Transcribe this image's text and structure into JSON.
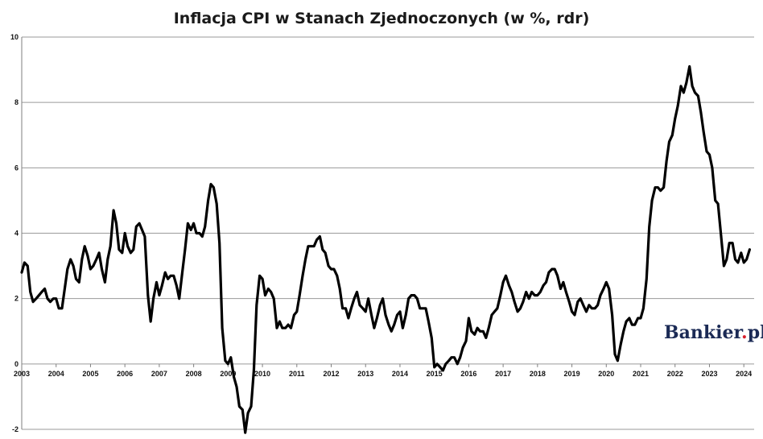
{
  "chart_data": {
    "type": "line",
    "title": "Inflacja CPI w Stanach Zjednoczonych (w %, rdr)",
    "xlabel": "",
    "ylabel": "",
    "xlim": [
      2003,
      2024.3
    ],
    "ylim": [
      -2,
      10
    ],
    "y_ticks": [
      "-2",
      "0",
      "2",
      "4",
      "6",
      "8",
      "10"
    ],
    "x_ticks": [
      "2003",
      "2004",
      "2005",
      "2006",
      "2007",
      "2008",
      "2009",
      "2010",
      "2011",
      "2012",
      "2013",
      "2014",
      "2015",
      "2016",
      "2017",
      "2018",
      "2019",
      "2020",
      "2021",
      "2022",
      "2023",
      "2024"
    ],
    "grid": true,
    "legend": "none",
    "series": [
      {
        "color": "#000000",
        "points": [
          [
            2003.0,
            2.8
          ],
          [
            2003.08,
            3.1
          ],
          [
            2003.17,
            3.0
          ],
          [
            2003.25,
            2.2
          ],
          [
            2003.33,
            1.9
          ],
          [
            2003.42,
            2.0
          ],
          [
            2003.5,
            2.1
          ],
          [
            2003.58,
            2.2
          ],
          [
            2003.67,
            2.3
          ],
          [
            2003.75,
            2.0
          ],
          [
            2003.83,
            1.9
          ],
          [
            2003.92,
            2.0
          ],
          [
            2004.0,
            2.0
          ],
          [
            2004.08,
            1.7
          ],
          [
            2004.17,
            1.7
          ],
          [
            2004.25,
            2.3
          ],
          [
            2004.33,
            2.9
          ],
          [
            2004.42,
            3.2
          ],
          [
            2004.5,
            3.0
          ],
          [
            2004.58,
            2.6
          ],
          [
            2004.67,
            2.5
          ],
          [
            2004.75,
            3.2
          ],
          [
            2004.83,
            3.6
          ],
          [
            2004.92,
            3.3
          ],
          [
            2005.0,
            2.9
          ],
          [
            2005.08,
            3.0
          ],
          [
            2005.17,
            3.2
          ],
          [
            2005.25,
            3.4
          ],
          [
            2005.33,
            2.9
          ],
          [
            2005.42,
            2.5
          ],
          [
            2005.5,
            3.2
          ],
          [
            2005.58,
            3.6
          ],
          [
            2005.67,
            4.7
          ],
          [
            2005.75,
            4.3
          ],
          [
            2005.83,
            3.5
          ],
          [
            2005.92,
            3.4
          ],
          [
            2006.0,
            4.0
          ],
          [
            2006.08,
            3.6
          ],
          [
            2006.17,
            3.4
          ],
          [
            2006.25,
            3.5
          ],
          [
            2006.33,
            4.2
          ],
          [
            2006.42,
            4.3
          ],
          [
            2006.5,
            4.1
          ],
          [
            2006.58,
            3.9
          ],
          [
            2006.67,
            2.1
          ],
          [
            2006.75,
            1.3
          ],
          [
            2006.83,
            2.0
          ],
          [
            2006.92,
            2.5
          ],
          [
            2007.0,
            2.1
          ],
          [
            2007.08,
            2.4
          ],
          [
            2007.17,
            2.8
          ],
          [
            2007.25,
            2.6
          ],
          [
            2007.33,
            2.7
          ],
          [
            2007.42,
            2.7
          ],
          [
            2007.5,
            2.4
          ],
          [
            2007.58,
            2.0
          ],
          [
            2007.67,
            2.8
          ],
          [
            2007.75,
            3.5
          ],
          [
            2007.83,
            4.3
          ],
          [
            2007.92,
            4.1
          ],
          [
            2008.0,
            4.3
          ],
          [
            2008.08,
            4.0
          ],
          [
            2008.17,
            4.0
          ],
          [
            2008.25,
            3.9
          ],
          [
            2008.33,
            4.2
          ],
          [
            2008.42,
            5.0
          ],
          [
            2008.5,
            5.5
          ],
          [
            2008.58,
            5.4
          ],
          [
            2008.67,
            4.9
          ],
          [
            2008.75,
            3.7
          ],
          [
            2008.83,
            1.1
          ],
          [
            2008.92,
            0.1
          ],
          [
            2009.0,
            0.0
          ],
          [
            2009.08,
            0.2
          ],
          [
            2009.17,
            -0.4
          ],
          [
            2009.25,
            -0.7
          ],
          [
            2009.33,
            -1.3
          ],
          [
            2009.42,
            -1.4
          ],
          [
            2009.5,
            -2.1
          ],
          [
            2009.58,
            -1.5
          ],
          [
            2009.67,
            -1.3
          ],
          [
            2009.75,
            -0.2
          ],
          [
            2009.83,
            1.8
          ],
          [
            2009.92,
            2.7
          ],
          [
            2010.0,
            2.6
          ],
          [
            2010.08,
            2.1
          ],
          [
            2010.17,
            2.3
          ],
          [
            2010.25,
            2.2
          ],
          [
            2010.33,
            2.0
          ],
          [
            2010.42,
            1.1
          ],
          [
            2010.5,
            1.3
          ],
          [
            2010.58,
            1.1
          ],
          [
            2010.67,
            1.1
          ],
          [
            2010.75,
            1.2
          ],
          [
            2010.83,
            1.1
          ],
          [
            2010.92,
            1.5
          ],
          [
            2011.0,
            1.6
          ],
          [
            2011.08,
            2.1
          ],
          [
            2011.17,
            2.7
          ],
          [
            2011.25,
            3.2
          ],
          [
            2011.33,
            3.6
          ],
          [
            2011.42,
            3.6
          ],
          [
            2011.5,
            3.6
          ],
          [
            2011.58,
            3.8
          ],
          [
            2011.67,
            3.9
          ],
          [
            2011.75,
            3.5
          ],
          [
            2011.83,
            3.4
          ],
          [
            2011.92,
            3.0
          ],
          [
            2012.0,
            2.9
          ],
          [
            2012.08,
            2.9
          ],
          [
            2012.17,
            2.7
          ],
          [
            2012.25,
            2.3
          ],
          [
            2012.33,
            1.7
          ],
          [
            2012.42,
            1.7
          ],
          [
            2012.5,
            1.4
          ],
          [
            2012.58,
            1.7
          ],
          [
            2012.67,
            2.0
          ],
          [
            2012.75,
            2.2
          ],
          [
            2012.83,
            1.8
          ],
          [
            2012.92,
            1.7
          ],
          [
            2013.0,
            1.6
          ],
          [
            2013.08,
            2.0
          ],
          [
            2013.17,
            1.5
          ],
          [
            2013.25,
            1.1
          ],
          [
            2013.33,
            1.4
          ],
          [
            2013.42,
            1.8
          ],
          [
            2013.5,
            2.0
          ],
          [
            2013.58,
            1.5
          ],
          [
            2013.67,
            1.2
          ],
          [
            2013.75,
            1.0
          ],
          [
            2013.83,
            1.2
          ],
          [
            2013.92,
            1.5
          ],
          [
            2014.0,
            1.6
          ],
          [
            2014.08,
            1.1
          ],
          [
            2014.17,
            1.5
          ],
          [
            2014.25,
            2.0
          ],
          [
            2014.33,
            2.1
          ],
          [
            2014.42,
            2.1
          ],
          [
            2014.5,
            2.0
          ],
          [
            2014.58,
            1.7
          ],
          [
            2014.67,
            1.7
          ],
          [
            2014.75,
            1.7
          ],
          [
            2014.83,
            1.3
          ],
          [
            2014.92,
            0.8
          ],
          [
            2015.0,
            -0.1
          ],
          [
            2015.08,
            0.0
          ],
          [
            2015.17,
            -0.1
          ],
          [
            2015.25,
            -0.2
          ],
          [
            2015.33,
            0.0
          ],
          [
            2015.42,
            0.1
          ],
          [
            2015.5,
            0.2
          ],
          [
            2015.58,
            0.2
          ],
          [
            2015.67,
            0.0
          ],
          [
            2015.75,
            0.2
          ],
          [
            2015.83,
            0.5
          ],
          [
            2015.92,
            0.7
          ],
          [
            2016.0,
            1.4
          ],
          [
            2016.08,
            1.0
          ],
          [
            2016.17,
            0.9
          ],
          [
            2016.25,
            1.1
          ],
          [
            2016.33,
            1.0
          ],
          [
            2016.42,
            1.0
          ],
          [
            2016.5,
            0.8
          ],
          [
            2016.58,
            1.1
          ],
          [
            2016.67,
            1.5
          ],
          [
            2016.75,
            1.6
          ],
          [
            2016.83,
            1.7
          ],
          [
            2016.92,
            2.1
          ],
          [
            2017.0,
            2.5
          ],
          [
            2017.08,
            2.7
          ],
          [
            2017.17,
            2.4
          ],
          [
            2017.25,
            2.2
          ],
          [
            2017.33,
            1.9
          ],
          [
            2017.42,
            1.6
          ],
          [
            2017.5,
            1.7
          ],
          [
            2017.58,
            1.9
          ],
          [
            2017.67,
            2.2
          ],
          [
            2017.75,
            2.0
          ],
          [
            2017.83,
            2.2
          ],
          [
            2017.92,
            2.1
          ],
          [
            2018.0,
            2.1
          ],
          [
            2018.08,
            2.2
          ],
          [
            2018.17,
            2.4
          ],
          [
            2018.25,
            2.5
          ],
          [
            2018.33,
            2.8
          ],
          [
            2018.42,
            2.9
          ],
          [
            2018.5,
            2.9
          ],
          [
            2018.58,
            2.7
          ],
          [
            2018.67,
            2.3
          ],
          [
            2018.75,
            2.5
          ],
          [
            2018.83,
            2.2
          ],
          [
            2018.92,
            1.9
          ],
          [
            2019.0,
            1.6
          ],
          [
            2019.08,
            1.5
          ],
          [
            2019.17,
            1.9
          ],
          [
            2019.25,
            2.0
          ],
          [
            2019.33,
            1.8
          ],
          [
            2019.42,
            1.6
          ],
          [
            2019.5,
            1.8
          ],
          [
            2019.58,
            1.7
          ],
          [
            2019.67,
            1.7
          ],
          [
            2019.75,
            1.8
          ],
          [
            2019.83,
            2.1
          ],
          [
            2019.92,
            2.3
          ],
          [
            2020.0,
            2.5
          ],
          [
            2020.08,
            2.3
          ],
          [
            2020.17,
            1.5
          ],
          [
            2020.25,
            0.3
          ],
          [
            2020.33,
            0.1
          ],
          [
            2020.42,
            0.6
          ],
          [
            2020.5,
            1.0
          ],
          [
            2020.58,
            1.3
          ],
          [
            2020.67,
            1.4
          ],
          [
            2020.75,
            1.2
          ],
          [
            2020.83,
            1.2
          ],
          [
            2020.92,
            1.4
          ],
          [
            2021.0,
            1.4
          ],
          [
            2021.08,
            1.7
          ],
          [
            2021.17,
            2.6
          ],
          [
            2021.25,
            4.2
          ],
          [
            2021.33,
            5.0
          ],
          [
            2021.42,
            5.4
          ],
          [
            2021.5,
            5.4
          ],
          [
            2021.58,
            5.3
          ],
          [
            2021.67,
            5.4
          ],
          [
            2021.75,
            6.2
          ],
          [
            2021.83,
            6.8
          ],
          [
            2021.92,
            7.0
          ],
          [
            2022.0,
            7.5
          ],
          [
            2022.08,
            7.9
          ],
          [
            2022.17,
            8.5
          ],
          [
            2022.25,
            8.3
          ],
          [
            2022.33,
            8.6
          ],
          [
            2022.42,
            9.1
          ],
          [
            2022.5,
            8.5
          ],
          [
            2022.58,
            8.3
          ],
          [
            2022.67,
            8.2
          ],
          [
            2022.75,
            7.7
          ],
          [
            2022.83,
            7.1
          ],
          [
            2022.92,
            6.5
          ],
          [
            2023.0,
            6.4
          ],
          [
            2023.08,
            6.0
          ],
          [
            2023.17,
            5.0
          ],
          [
            2023.25,
            4.9
          ],
          [
            2023.33,
            4.0
          ],
          [
            2023.42,
            3.0
          ],
          [
            2023.5,
            3.2
          ],
          [
            2023.58,
            3.7
          ],
          [
            2023.67,
            3.7
          ],
          [
            2023.75,
            3.2
          ],
          [
            2023.83,
            3.1
          ],
          [
            2023.92,
            3.4
          ],
          [
            2024.0,
            3.1
          ],
          [
            2024.08,
            3.2
          ],
          [
            2024.17,
            3.5
          ]
        ]
      }
    ]
  },
  "branding": {
    "logo_text": "Bankier",
    "logo_dot": ".",
    "logo_suffix": "pl"
  }
}
